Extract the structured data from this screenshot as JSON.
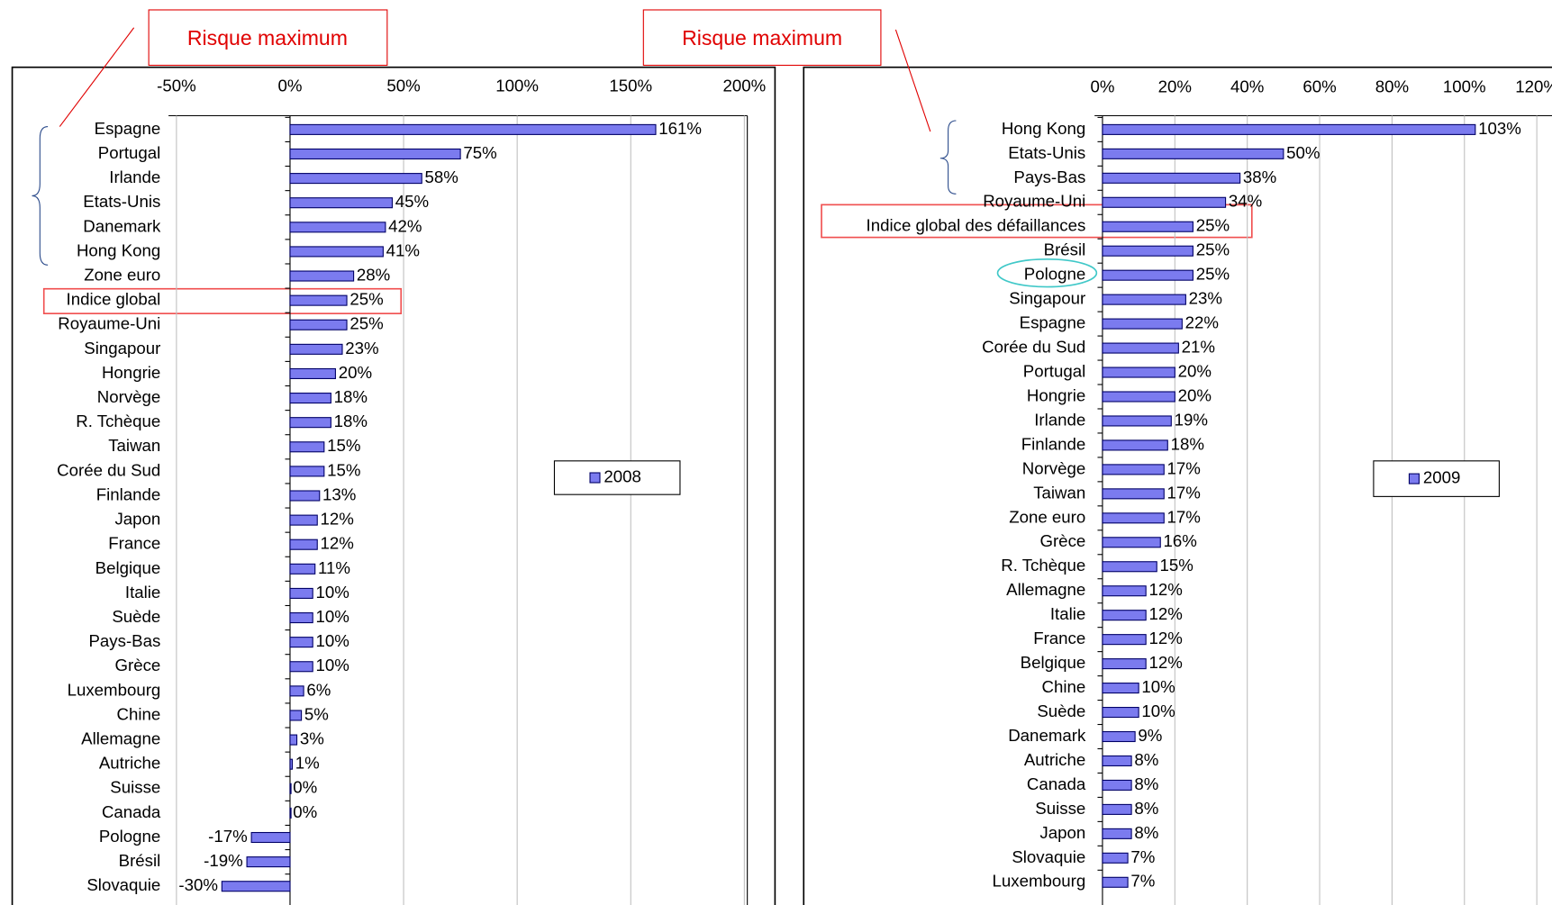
{
  "chart_data": [
    {
      "type": "bar",
      "annotation": "Risque maximum",
      "categories": [
        "Espagne",
        "Portugal",
        "Irlande",
        "Etats-Unis",
        "Danemark",
        "Hong Kong",
        "Zone euro",
        "Indice global",
        "Royaume-Uni",
        "Singapour",
        "Hongrie",
        "Norvège",
        "R. Tchèque",
        "Taiwan",
        "Corée du Sud",
        "Finlande",
        "Japon",
        "France",
        "Belgique",
        "Italie",
        "Suède",
        "Pays-Bas",
        "Grèce",
        "Luxembourg",
        "Chine",
        "Allemagne",
        "Autriche",
        "Suisse",
        "Canada",
        "Pologne",
        "Brésil",
        "Slovaquie"
      ],
      "series": [
        {
          "name": "2008",
          "color": "#7b7bef",
          "values": [
            161,
            75,
            58,
            45,
            42,
            41,
            28,
            25,
            25,
            23,
            20,
            18,
            18,
            15,
            15,
            13,
            12,
            12,
            11,
            10,
            10,
            10,
            10,
            6,
            5,
            3,
            1,
            0,
            0,
            -17,
            -19,
            -30
          ],
          "value_labels": [
            "161%",
            "75%",
            "58%",
            "45%",
            "42%",
            "41%",
            "28%",
            "25%",
            "25%",
            "23%",
            "20%",
            "18%",
            "18%",
            "15%",
            "15%",
            "13%",
            "12%",
            "12%",
            "11%",
            "10%",
            "10%",
            "10%",
            "10%",
            "6%",
            "5%",
            "3%",
            "1%",
            "0%",
            "0%",
            "-17%",
            "-19%",
            "-30%"
          ]
        }
      ],
      "xlim": [
        -50,
        200
      ],
      "xticks": [
        {
          "value": -50,
          "label": "-50%"
        },
        {
          "value": 0,
          "label": "0%"
        },
        {
          "value": 50,
          "label": "50%"
        },
        {
          "value": 100,
          "label": "100%"
        },
        {
          "value": 150,
          "label": "150%"
        },
        {
          "value": 200,
          "label": "200%"
        }
      ],
      "grid": true
    },
    {
      "type": "bar",
      "annotation": "Risque maximum",
      "categories": [
        "Hong Kong",
        "Etats-Unis",
        "Pays-Bas",
        "Royaume-Uni",
        "Indice global des défaillances",
        "Brésil",
        "Pologne",
        "Singapour",
        "Espagne",
        "Corée du Sud",
        "Portugal",
        "Hongrie",
        "Irlande",
        "Finlande",
        "Norvège",
        "Taiwan",
        "Zone euro",
        "Grèce",
        "R. Tchèque",
        "Allemagne",
        "Italie",
        "France",
        "Belgique",
        "Chine",
        "Suède",
        "Danemark",
        "Autriche",
        "Canada",
        "Suisse",
        "Japon",
        "Slovaquie",
        "Luxembourg"
      ],
      "series": [
        {
          "name": "2009",
          "color": "#7b7bef",
          "values": [
            103,
            50,
            38,
            34,
            25,
            25,
            25,
            23,
            22,
            21,
            20,
            20,
            19,
            18,
            17,
            17,
            17,
            16,
            15,
            12,
            12,
            12,
            12,
            10,
            10,
            9,
            8,
            8,
            8,
            8,
            7,
            7
          ],
          "value_labels": [
            "103%",
            "50%",
            "38%",
            "34%",
            "25%",
            "25%",
            "25%",
            "23%",
            "22%",
            "21%",
            "20%",
            "20%",
            "19%",
            "18%",
            "17%",
            "17%",
            "17%",
            "16%",
            "15%",
            "12%",
            "12%",
            "12%",
            "12%",
            "10%",
            "10%",
            "9%",
            "8%",
            "8%",
            "8%",
            "8%",
            "7%",
            "7%"
          ]
        }
      ],
      "xlim": [
        0,
        120
      ],
      "xticks": [
        {
          "value": 0,
          "label": "0%"
        },
        {
          "value": 20,
          "label": "20%"
        },
        {
          "value": 40,
          "label": "40%"
        },
        {
          "value": 60,
          "label": "60%"
        },
        {
          "value": 80,
          "label": "80%"
        },
        {
          "value": 100,
          "label": "100%"
        },
        {
          "value": 120,
          "label": "120%"
        }
      ],
      "grid": true
    }
  ]
}
